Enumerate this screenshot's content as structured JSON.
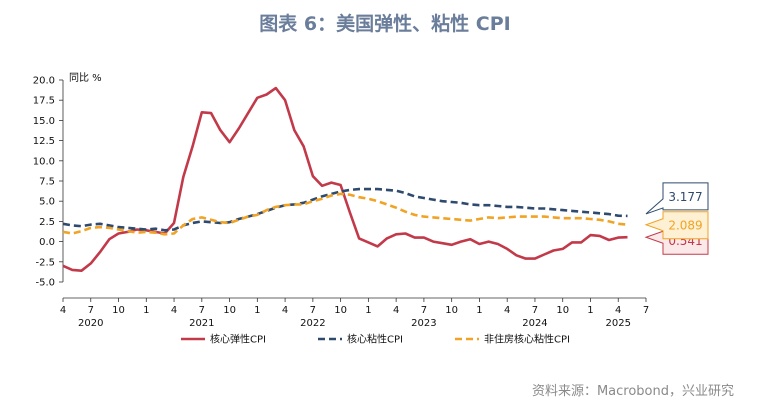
{
  "title": "图表 6：美国弹性、粘性 CPI",
  "source": "资料来源：Macrobond，兴业研究",
  "colors": {
    "title": "#6a7d9a",
    "series": [
      "#c23a4a",
      "#2e4a6e",
      "#f0a324"
    ],
    "callout_bg": [
      "#fbe9e9",
      "#ffffff",
      "#fdf0d3"
    ]
  },
  "chart_data": {
    "type": "line",
    "ylabel": "同比 %",
    "ylim": [
      -5,
      20
    ],
    "y_ticks": [
      "20.0",
      "17.5",
      "15.0",
      "12.5",
      "10.0",
      "7.5",
      "5.0",
      "2.5",
      "0.0",
      "-2.5",
      "-5.0"
    ],
    "xlim": [
      "2020-04",
      "2025-07"
    ],
    "x_ticks": [
      "4",
      "7",
      "10",
      "1",
      "4",
      "7",
      "10",
      "1",
      "4",
      "7",
      "10",
      "1",
      "4",
      "7",
      "10",
      "1",
      "4",
      "7",
      "10",
      "1",
      "4",
      "7"
    ],
    "years": [
      "2020",
      "2021",
      "2022",
      "2023",
      "2024",
      "2025"
    ],
    "grid": false,
    "legend_position": "bottom",
    "series": [
      {
        "name": "核心弹性CPI",
        "style": "solid",
        "x": [
          "2020-04",
          "2020-05",
          "2020-06",
          "2020-07",
          "2020-08",
          "2020-09",
          "2020-10",
          "2020-11",
          "2020-12",
          "2021-01",
          "2021-02",
          "2021-03",
          "2021-04",
          "2021-05",
          "2021-06",
          "2021-07",
          "2021-08",
          "2021-09",
          "2021-10",
          "2021-11",
          "2021-12",
          "2022-01",
          "2022-02",
          "2022-03",
          "2022-04",
          "2022-05",
          "2022-06",
          "2022-07",
          "2022-08",
          "2022-09",
          "2022-10",
          "2022-11",
          "2022-12",
          "2023-01",
          "2023-02",
          "2023-03",
          "2023-04",
          "2023-05",
          "2023-06",
          "2023-07",
          "2023-08",
          "2023-09",
          "2023-10",
          "2023-11",
          "2023-12",
          "2024-01",
          "2024-02",
          "2024-03",
          "2024-04",
          "2024-05",
          "2024-06",
          "2024-07",
          "2024-08",
          "2024-09",
          "2024-10",
          "2024-11",
          "2024-12",
          "2025-01",
          "2025-02",
          "2025-03",
          "2025-04",
          "2025-05"
        ],
        "values": [
          -3.0,
          -3.5,
          -3.6,
          -2.7,
          -1.3,
          0.3,
          1.0,
          1.2,
          1.5,
          1.4,
          1.2,
          1.0,
          2.3,
          8.0,
          11.8,
          16.0,
          15.9,
          13.8,
          12.3,
          14.0,
          15.9,
          17.8,
          18.2,
          19.0,
          17.5,
          13.8,
          11.8,
          8.1,
          6.9,
          7.3,
          7.0,
          3.6,
          0.4,
          -0.1,
          -0.6,
          0.4,
          0.9,
          1.0,
          0.5,
          0.5,
          0.0,
          -0.2,
          -0.4,
          0.0,
          0.3,
          -0.3,
          0.0,
          -0.3,
          -0.9,
          -1.7,
          -2.1,
          -2.1,
          -1.6,
          -1.1,
          -0.9,
          -0.1,
          -0.1,
          0.8,
          0.7,
          0.2,
          0.5,
          0.541
        ]
      },
      {
        "name": "核心粘性CPI",
        "style": "dashed",
        "x": [
          "2020-04",
          "2020-05",
          "2020-06",
          "2020-07",
          "2020-08",
          "2020-09",
          "2020-10",
          "2020-11",
          "2020-12",
          "2021-01",
          "2021-02",
          "2021-03",
          "2021-04",
          "2021-05",
          "2021-06",
          "2021-07",
          "2021-08",
          "2021-09",
          "2021-10",
          "2021-11",
          "2021-12",
          "2022-01",
          "2022-02",
          "2022-03",
          "2022-04",
          "2022-05",
          "2022-06",
          "2022-07",
          "2022-08",
          "2022-09",
          "2022-10",
          "2022-11",
          "2022-12",
          "2023-01",
          "2023-02",
          "2023-03",
          "2023-04",
          "2023-05",
          "2023-06",
          "2023-07",
          "2023-08",
          "2023-09",
          "2023-10",
          "2023-11",
          "2023-12",
          "2024-01",
          "2024-02",
          "2024-03",
          "2024-04",
          "2024-05",
          "2024-06",
          "2024-07",
          "2024-08",
          "2024-09",
          "2024-10",
          "2024-11",
          "2024-12",
          "2025-01",
          "2025-02",
          "2025-03",
          "2025-04",
          "2025-05"
        ],
        "values": [
          2.2,
          2.0,
          1.9,
          2.1,
          2.2,
          2.0,
          1.8,
          1.7,
          1.6,
          1.5,
          1.6,
          1.4,
          1.5,
          2.0,
          2.3,
          2.5,
          2.4,
          2.3,
          2.4,
          2.8,
          3.1,
          3.4,
          3.8,
          4.2,
          4.5,
          4.6,
          4.8,
          5.2,
          5.6,
          5.9,
          6.2,
          6.4,
          6.5,
          6.5,
          6.5,
          6.4,
          6.3,
          6.0,
          5.6,
          5.4,
          5.2,
          5.0,
          4.9,
          4.8,
          4.6,
          4.5,
          4.5,
          4.4,
          4.3,
          4.3,
          4.2,
          4.1,
          4.1,
          4.0,
          3.9,
          3.8,
          3.7,
          3.6,
          3.5,
          3.4,
          3.2,
          3.177
        ]
      },
      {
        "name": "非住房核心粘性CPI",
        "style": "dashed",
        "x": [
          "2020-04",
          "2020-05",
          "2020-06",
          "2020-07",
          "2020-08",
          "2020-09",
          "2020-10",
          "2020-11",
          "2020-12",
          "2021-01",
          "2021-02",
          "2021-03",
          "2021-04",
          "2021-05",
          "2021-06",
          "2021-07",
          "2021-08",
          "2021-09",
          "2021-10",
          "2021-11",
          "2021-12",
          "2022-01",
          "2022-02",
          "2022-03",
          "2022-04",
          "2022-05",
          "2022-06",
          "2022-07",
          "2022-08",
          "2022-09",
          "2022-10",
          "2022-11",
          "2022-12",
          "2023-01",
          "2023-02",
          "2023-03",
          "2023-04",
          "2023-05",
          "2023-06",
          "2023-07",
          "2023-08",
          "2023-09",
          "2023-10",
          "2023-11",
          "2023-12",
          "2024-01",
          "2024-02",
          "2024-03",
          "2024-04",
          "2024-05",
          "2024-06",
          "2024-07",
          "2024-08",
          "2024-09",
          "2024-10",
          "2024-11",
          "2024-12",
          "2025-01",
          "2025-02",
          "2025-03",
          "2025-04",
          "2025-05"
        ],
        "values": [
          1.2,
          1.0,
          1.3,
          1.7,
          1.8,
          1.7,
          1.5,
          1.3,
          1.1,
          1.2,
          1.1,
          0.9,
          1.0,
          2.0,
          2.8,
          3.0,
          2.7,
          2.4,
          2.3,
          2.7,
          3.1,
          3.3,
          3.9,
          4.3,
          4.5,
          4.6,
          4.6,
          5.0,
          5.3,
          5.7,
          5.9,
          5.8,
          5.5,
          5.3,
          5.0,
          4.6,
          4.2,
          3.7,
          3.3,
          3.1,
          3.0,
          2.9,
          2.8,
          2.7,
          2.6,
          2.8,
          3.0,
          2.9,
          3.0,
          3.1,
          3.1,
          3.1,
          3.1,
          3.0,
          2.9,
          2.9,
          2.9,
          2.8,
          2.7,
          2.5,
          2.2,
          2.089
        ]
      }
    ],
    "end_labels": [
      "0.541",
      "3.177",
      "2.089"
    ]
  }
}
